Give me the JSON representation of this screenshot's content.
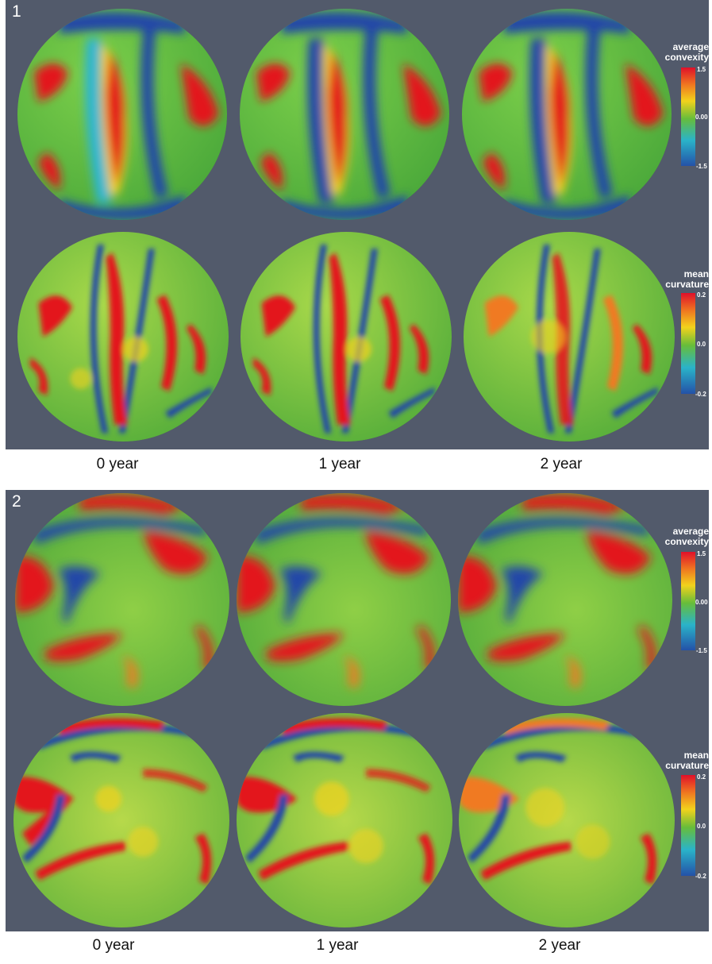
{
  "figure": {
    "panels": [
      {
        "label": "1",
        "rows": [
          {
            "colorbar": {
              "title_line1": "average",
              "title_line2": "convexity",
              "max": "1.5",
              "mid": "0.00",
              "min": "-1.5"
            }
          },
          {
            "colorbar": {
              "title_line1": "mean",
              "title_line2": "curvature",
              "max": "0.2",
              "mid": "0.0",
              "min": "-0.2"
            }
          }
        ],
        "years": [
          "0 year",
          "1 year",
          "2 year"
        ]
      },
      {
        "label": "2",
        "rows": [
          {
            "colorbar": {
              "title_line1": "average",
              "title_line2": "convexity",
              "max": "1.5",
              "mid": "0.00",
              "min": "-1.5"
            }
          },
          {
            "colorbar": {
              "title_line1": "mean",
              "title_line2": "curvature",
              "max": "0.2",
              "mid": "0.0",
              "min": "-0.2"
            }
          }
        ],
        "years": [
          "0 year",
          "1 year",
          "2 year"
        ]
      }
    ],
    "colors": {
      "background": "#525a6b",
      "red": "#e3171d",
      "yellow": "#f2d21c",
      "green": "#5fb83b",
      "cyan": "#2fb6d0",
      "blue": "#2447a8"
    }
  }
}
